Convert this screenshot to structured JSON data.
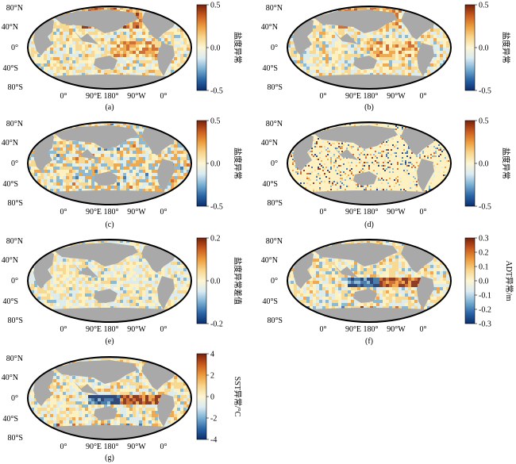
{
  "colors": {
    "diverging": [
      "#0b2d6b",
      "#2c67a8",
      "#79b0d4",
      "#d9ebf3",
      "#fbf6d5",
      "#f7d58c",
      "#ec9c3c",
      "#c75a1d",
      "#7a1f0a"
    ],
    "land": "#a9a9a9",
    "ocean_base": "#fdf1c2",
    "border": "#000000"
  },
  "lon_labels": [
    "0°",
    "90°E",
    "180°",
    "90°W",
    "0°"
  ],
  "lat_labels": [
    "80°N",
    "40°N",
    "0°",
    "40°S",
    "80°S"
  ],
  "panels": [
    {
      "id": "a",
      "caption": "(a)",
      "colorbar_label": "盐度异常",
      "ticks": [
        "0.5",
        "0.0",
        "-0.5"
      ],
      "pattern": "salinity"
    },
    {
      "id": "b",
      "caption": "(b)",
      "colorbar_label": "盐度异常",
      "ticks": [
        "0.5",
        "0.0",
        "-0.5"
      ],
      "pattern": "salinity"
    },
    {
      "id": "c",
      "caption": "(c)",
      "colorbar_label": "盐度异常",
      "ticks": [
        "0.5",
        "0.0",
        "-0.5"
      ],
      "pattern": "salinity_strong"
    },
    {
      "id": "d",
      "caption": "(d)",
      "colorbar_label": "盐度异常",
      "ticks": [
        "0.5",
        "0.0",
        "-0.5"
      ],
      "pattern": "salinity_sparse"
    },
    {
      "id": "e",
      "caption": "(e)",
      "colorbar_label": "盐度异常差值",
      "ticks": [
        "0.2",
        "0.0",
        "-0.2"
      ],
      "pattern": "difference"
    },
    {
      "id": "f",
      "caption": "(f)",
      "colorbar_label": "ADT异常/m",
      "ticks": [
        "0.3",
        "0.2",
        "0.1",
        "0.0",
        "-0.1",
        "-0.2",
        "-0.3"
      ],
      "pattern": "adt"
    },
    {
      "id": "g",
      "caption": "(g)",
      "colorbar_label": "SST异常/°C",
      "ticks": [
        "4",
        "2",
        "0",
        "-2",
        "-4"
      ],
      "pattern": "sst"
    }
  ]
}
